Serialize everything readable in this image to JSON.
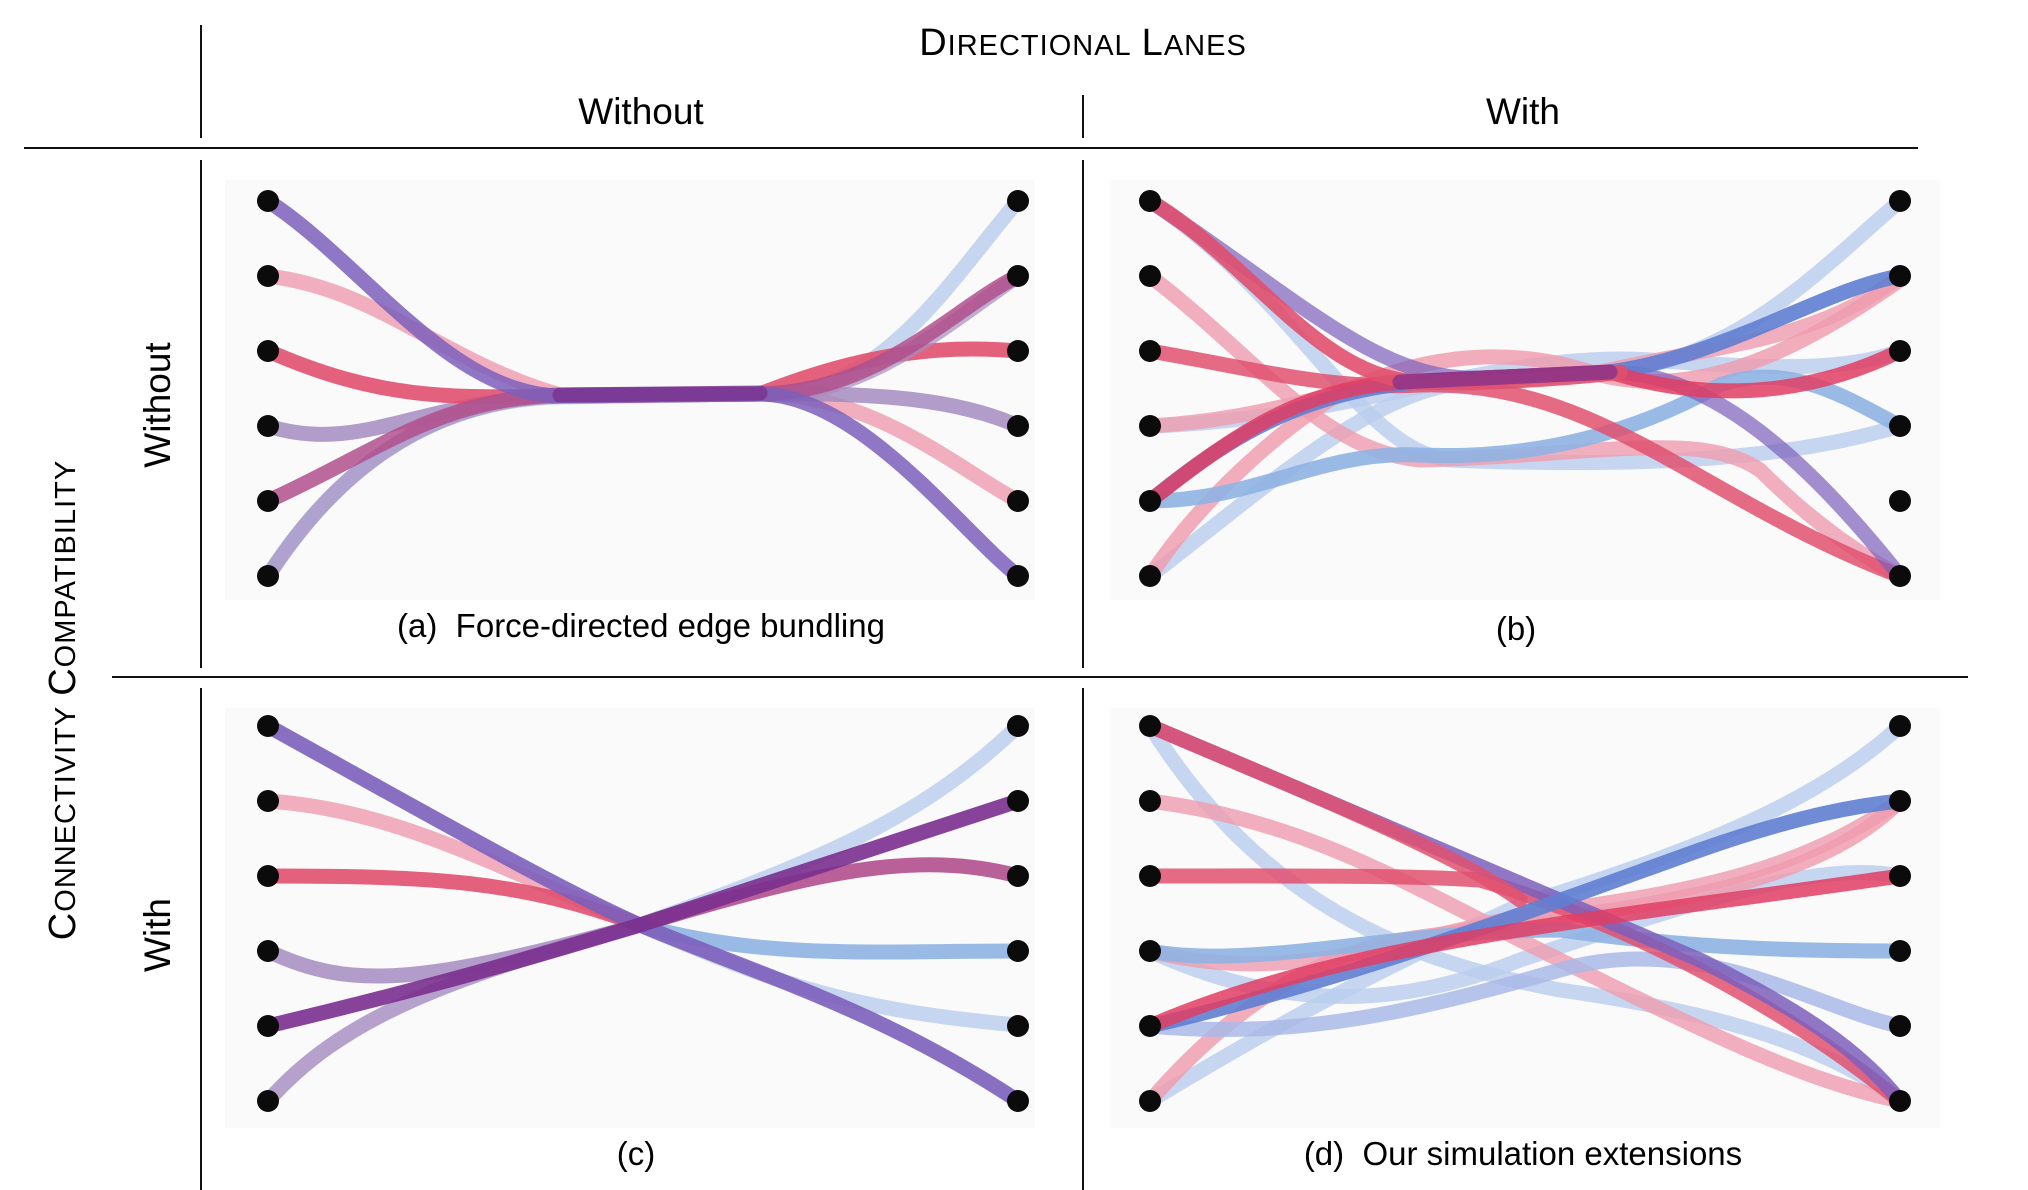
{
  "header": {
    "top_title": {
      "first_big": "D",
      "rest_small": "IRECTIONAL",
      "second_big": "L",
      "second_rest": "ANES"
    },
    "col_without": "Without",
    "col_with": "With"
  },
  "side": {
    "outer_title": {
      "first_big": "C",
      "rest_small": "ONNECTIVITY",
      "second_big": "C",
      "second_rest": "OMPATIBILITY"
    },
    "row_without": "Without",
    "row_with": "With"
  },
  "panels": [
    {
      "id": "a",
      "caption": "(a)  Force-directed edge bundling"
    },
    {
      "id": "b",
      "caption": "(b)"
    },
    {
      "id": "c",
      "caption": "(c)"
    },
    {
      "id": "d",
      "caption": "(d)  Our simulation extensions"
    }
  ],
  "colors": {
    "pink_red": "#e0506e",
    "light_pink": "#eda0b3",
    "magenta": "#b04f8c",
    "lavender": "#a58bc0",
    "deep_purple": "#7a2f8e",
    "blue": "#6d86d0",
    "light_blue": "#b9cdee",
    "node": "#0b0b0b"
  }
}
